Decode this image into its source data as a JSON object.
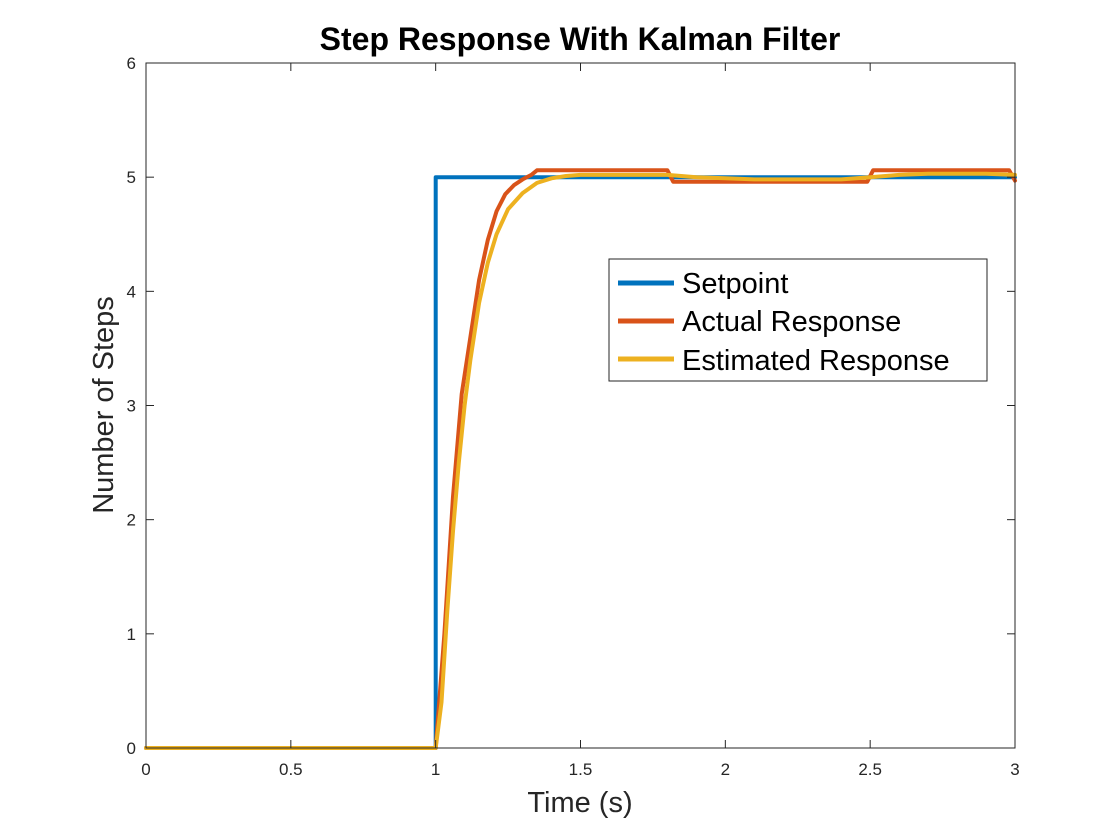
{
  "chart_data": {
    "type": "line",
    "title": "Step Response With Kalman Filter",
    "xlabel": "Time (s)",
    "ylabel": "Number of Steps",
    "xlim": [
      0,
      3
    ],
    "ylim": [
      0,
      6
    ],
    "xticks": [
      0,
      0.5,
      1,
      1.5,
      2,
      2.5,
      3
    ],
    "xtick_labels": [
      "0",
      "0.5",
      "1",
      "1.5",
      "2",
      "2.5",
      "3"
    ],
    "yticks": [
      0,
      1,
      2,
      3,
      4,
      5,
      6
    ],
    "ytick_labels": [
      "0",
      "1",
      "2",
      "3",
      "4",
      "5",
      "6"
    ],
    "grid": false,
    "box": true,
    "legend_position": "right",
    "series": [
      {
        "name": "Setpoint",
        "color": "#0072BD",
        "x": [
          0,
          1,
          1,
          3
        ],
        "y": [
          0,
          0,
          5,
          5
        ]
      },
      {
        "name": "Actual Response",
        "color": "#D95319",
        "x": [
          0,
          1,
          1.03,
          1.06,
          1.09,
          1.12,
          1.15,
          1.18,
          1.21,
          1.24,
          1.27,
          1.3,
          1.33,
          1.35,
          1.8,
          1.82,
          2.49,
          2.51,
          2.98,
          3
        ],
        "y": [
          0,
          0,
          1.0,
          2.2,
          3.1,
          3.6,
          4.1,
          4.45,
          4.7,
          4.85,
          4.93,
          4.98,
          5.02,
          5.06,
          5.06,
          4.96,
          4.96,
          5.06,
          5.06,
          4.97
        ]
      },
      {
        "name": "Estimated Response",
        "color": "#EDB120",
        "x": [
          0,
          1,
          1.02,
          1.04,
          1.06,
          1.08,
          1.1,
          1.12,
          1.15,
          1.18,
          1.21,
          1.25,
          1.3,
          1.35,
          1.4,
          1.45,
          1.5,
          1.6,
          1.7,
          1.8,
          1.9,
          2.0,
          2.1,
          2.2,
          2.3,
          2.4,
          2.5,
          2.6,
          2.7,
          2.8,
          2.9,
          3.0
        ],
        "y": [
          0,
          0,
          0.4,
          1.2,
          1.9,
          2.5,
          3.0,
          3.4,
          3.9,
          4.25,
          4.5,
          4.72,
          4.86,
          4.95,
          4.99,
          5.01,
          5.02,
          5.02,
          5.02,
          5.02,
          5.0,
          4.99,
          4.98,
          4.98,
          4.98,
          4.98,
          5.0,
          5.02,
          5.03,
          5.03,
          5.03,
          5.02
        ]
      }
    ]
  }
}
